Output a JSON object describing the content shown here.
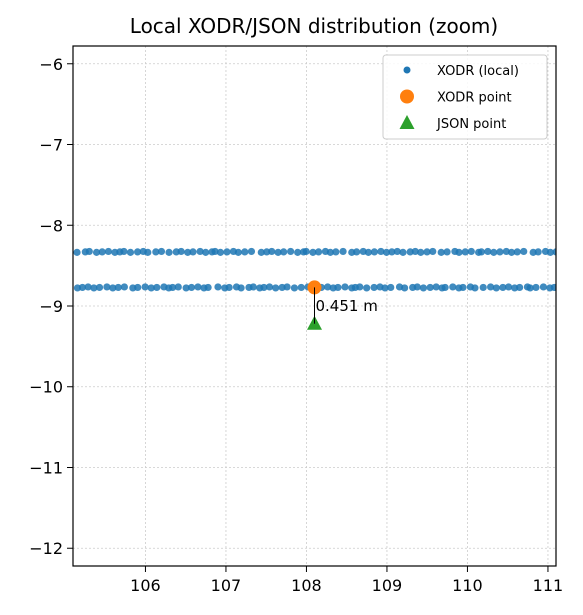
{
  "chart_data": {
    "type": "scatter",
    "title": "Local XODR/JSON distribution (zoom)",
    "xlabel": "",
    "ylabel": "",
    "xlim": [
      105.1,
      111.1
    ],
    "ylim": [
      -12.22,
      -5.78
    ],
    "xticks": [
      106,
      107,
      108,
      109,
      110,
      111
    ],
    "yticks": [
      -6,
      -7,
      -8,
      -9,
      -10,
      -11,
      -12
    ],
    "grid": true,
    "legend_position": "top-right",
    "series": [
      {
        "name": "XODR (local)",
        "color": "#1f77b4",
        "marker": "circle-small",
        "lanes": [
          {
            "y": -8.33,
            "x_start": 105.15,
            "x_end": 111.1,
            "count": 80
          },
          {
            "y": -8.77,
            "x_start": 105.15,
            "x_end": 111.1,
            "count": 80
          }
        ]
      },
      {
        "name": "XODR point",
        "color": "#ff7f0e",
        "marker": "circle",
        "x": 108.1,
        "y": -8.77
      },
      {
        "name": "JSON point",
        "color": "#2ca02c",
        "marker": "triangle",
        "x": 108.1,
        "y": -9.22
      }
    ],
    "annotations": [
      {
        "text": "0.451 m",
        "x": 108.1,
        "y": -8.99
      }
    ]
  }
}
